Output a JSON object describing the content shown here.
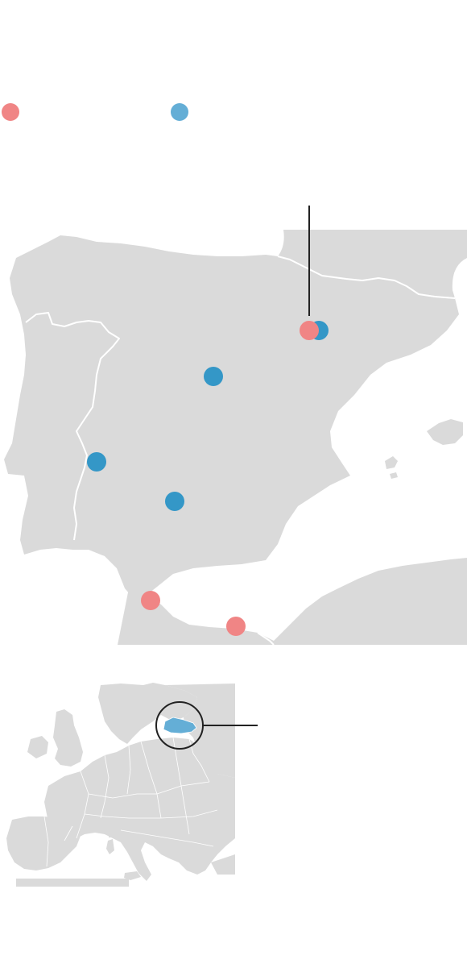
{
  "colors": {
    "land": "#dadada",
    "border": "#ffffff",
    "sea": "#ffffff",
    "marker_red": "#f08585",
    "marker_blue": "#3497c7",
    "legend_blue": "#64aed6",
    "highlight_country": "#64aed6",
    "callout_line": "#222222"
  },
  "legend": [
    {
      "color_key": "marker_red",
      "label": ""
    },
    {
      "color_key": "marker_blue",
      "label": ""
    }
  ],
  "markers": [
    {
      "category": "red",
      "place": ""
    },
    {
      "category": "blue",
      "place": ""
    },
    {
      "category": "blue",
      "place": ""
    },
    {
      "category": "blue",
      "place": ""
    },
    {
      "category": "blue",
      "place": ""
    },
    {
      "category": "red",
      "place": ""
    },
    {
      "category": "red",
      "place": ""
    }
  ],
  "inset": {
    "highlight": "Latvia",
    "region": "Europe"
  }
}
